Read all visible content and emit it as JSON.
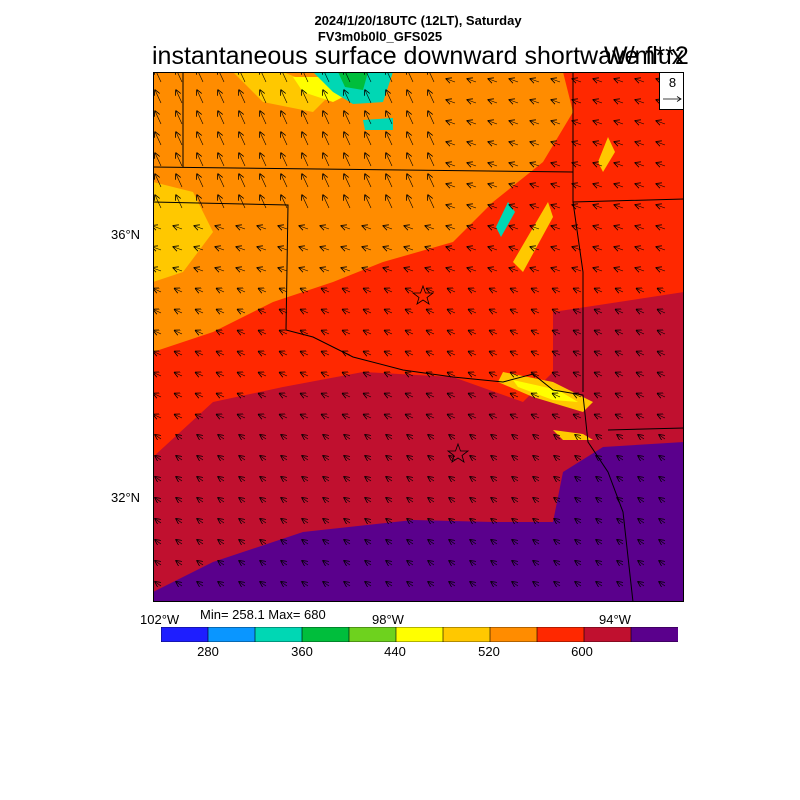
{
  "header": {
    "datetime": "2024/1/20/18UTC (12LT), Saturday",
    "model": "FV3m0b0l0_GFS025",
    "title": "instantaneous surface downward shortwave flux",
    "units": "W/m**2"
  },
  "vector_reference": {
    "value": "8"
  },
  "axes": {
    "lat_labels": [
      "36°N",
      "32°N"
    ],
    "lon_labels": [
      "102°W",
      "98°W",
      "94°W"
    ]
  },
  "stats": {
    "text": "Min= 258.1 Max= 680"
  },
  "colorbar": {
    "colors": [
      "#1e1eff",
      "#0a96ff",
      "#00d7b4",
      "#00be3c",
      "#6ed21e",
      "#ffff00",
      "#ffc800",
      "#ff8c00",
      "#ff2800",
      "#c0102f",
      "#5a008c"
    ],
    "labels": [
      "280",
      "360",
      "440",
      "520",
      "600"
    ]
  },
  "map": {
    "colors": {
      "frame": "#000000",
      "border": "#000000",
      "orange": "#ff8c00",
      "gold": "#ffc800",
      "yellow": "#ffff00",
      "red_orange": "#ff2800",
      "crimson": "#c0102f",
      "purple": "#5a008c",
      "teal": "#00d7b4",
      "green": "#00be3c"
    }
  }
}
